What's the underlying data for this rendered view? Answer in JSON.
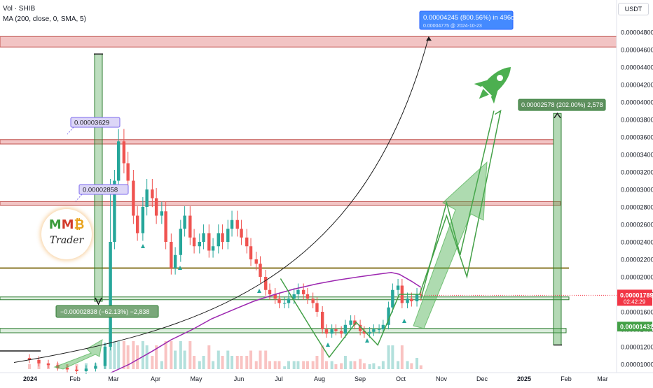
{
  "legend": {
    "title": "Vol · SHIB",
    "indicator": "MA (200, close, 0, SMA, 5)"
  },
  "currency_button": "USDT",
  "logo": {
    "m1": "M",
    "m2": "M",
    "b": "₿",
    "sub": "Trader"
  },
  "colors": {
    "up": "#26a69a",
    "down": "#ef5350",
    "ma": "#9c27b0",
    "zone_red": "#f2c4c4",
    "zone_green": "#2e7d32",
    "arrow_green": "#4caf50",
    "price_badge": "#f23645",
    "support_badge": "#43a047"
  },
  "chart_data": {
    "type": "candlestick",
    "title": "",
    "x_ticks": [
      "2024",
      "Feb",
      "Mar",
      "Apr",
      "May",
      "Jun",
      "Jul",
      "Aug",
      "Sep",
      "Oct",
      "Nov",
      "Dec",
      "2025",
      "Feb",
      "Mar"
    ],
    "y_ticks": [
      "0.00004800",
      "0.00004600",
      "0.00004400",
      "0.00004200",
      "0.00004000",
      "0.00003800",
      "0.00003600",
      "0.00003400",
      "0.00003200",
      "0.00003000",
      "0.00002800",
      "0.00002600",
      "0.00002400",
      "0.00002200",
      "0.00002000",
      "0.00001800",
      "0.00001600",
      "0.00001400",
      "0.00001200",
      "0.00001000"
    ],
    "ylim": [
      9.65e-06,
      4.93e-05
    ],
    "current_price": {
      "label": "0.00001789",
      "countdown": "02:42:29",
      "value": 1.789e-05
    },
    "support_price": {
      "label": "0.00001431",
      "value": 1.431e-05
    },
    "price_labels": [
      {
        "text": "0.00003629",
        "value": 3.629e-05
      },
      {
        "text": "0.00002858",
        "value": 2.858e-05
      }
    ],
    "measures": [
      {
        "text": "0.00004245 (800.56%) in 496d",
        "subtext": "0.00004775 @ 2024-10-23"
      },
      {
        "text": "0.00002578 (202.00%) 2,578"
      },
      {
        "text": "−0.00002838 (−62.13%) −2,838"
      }
    ],
    "zones": [
      {
        "from": 4.63e-05,
        "to": 4.75e-05,
        "color": "red"
      },
      {
        "from": 3.52e-05,
        "to": 3.57e-05,
        "color": "red"
      },
      {
        "from": 2.82e-05,
        "to": 2.86e-05,
        "color": "red"
      },
      {
        "from": 2.1e-05,
        "to": 2.1e-05,
        "color": "olive"
      },
      {
        "from": 1.74e-05,
        "to": 1.77e-05,
        "color": "green"
      },
      {
        "from": 1.36e-05,
        "to": 1.41e-05,
        "color": "green"
      }
    ],
    "series": [
      {
        "name": "",
        "points": [
          [
            "2024-01-01",
            1.05e-05
          ],
          [
            "2024-01-08",
            1.01e-05
          ],
          [
            "2024-01-15",
            9.9e-06
          ],
          [
            "2024-01-22",
            9.6e-06
          ],
          [
            "2024-01-29",
            9.4e-06
          ],
          [
            "2024-02-05",
            9.2e-06
          ],
          [
            "2024-02-12",
            9.5e-06
          ],
          [
            "2024-02-19",
            9.8e-06
          ],
          [
            "2024-02-26",
            1.2e-05
          ],
          [
            "2024-03-01",
            2.4e-05
          ],
          [
            "2024-03-04",
            3.1e-05
          ],
          [
            "2024-03-07",
            3.55e-05
          ],
          [
            "2024-03-11",
            3.3e-05
          ],
          [
            "2024-03-14",
            3.1e-05
          ],
          [
            "2024-03-18",
            2.7e-05
          ],
          [
            "2024-03-21",
            2.5e-05
          ],
          [
            "2024-03-25",
            2.8e-05
          ],
          [
            "2024-03-28",
            3e-05
          ],
          [
            "2024-04-01",
            2.9e-05
          ],
          [
            "2024-04-04",
            2.7e-05
          ],
          [
            "2024-04-08",
            2.75e-05
          ],
          [
            "2024-04-11",
            2.4e-05
          ],
          [
            "2024-04-15",
            2.1e-05
          ],
          [
            "2024-04-18",
            2.25e-05
          ],
          [
            "2024-04-22",
            2.55e-05
          ],
          [
            "2024-04-25",
            2.7e-05
          ],
          [
            "2024-04-29",
            2.45e-05
          ],
          [
            "2024-05-02",
            2.35e-05
          ],
          [
            "2024-05-06",
            2.4e-05
          ],
          [
            "2024-05-09",
            2.5e-05
          ],
          [
            "2024-05-13",
            2.3e-05
          ],
          [
            "2024-05-16",
            2.35e-05
          ],
          [
            "2024-05-20",
            2.5e-05
          ],
          [
            "2024-05-23",
            2.4e-05
          ],
          [
            "2024-05-27",
            2.55e-05
          ],
          [
            "2024-05-30",
            2.65e-05
          ],
          [
            "2024-06-03",
            2.55e-05
          ],
          [
            "2024-06-06",
            2.45e-05
          ],
          [
            "2024-06-10",
            2.35e-05
          ],
          [
            "2024-06-13",
            2.2e-05
          ],
          [
            "2024-06-17",
            2.15e-05
          ],
          [
            "2024-06-20",
            2e-05
          ],
          [
            "2024-06-24",
            1.85e-05
          ],
          [
            "2024-06-27",
            1.8e-05
          ],
          [
            "2024-07-01",
            1.75e-05
          ],
          [
            "2024-07-04",
            1.7e-05
          ],
          [
            "2024-07-08",
            1.7e-05
          ],
          [
            "2024-07-11",
            1.75e-05
          ],
          [
            "2024-07-15",
            1.8e-05
          ],
          [
            "2024-07-18",
            1.85e-05
          ],
          [
            "2024-07-22",
            1.8e-05
          ],
          [
            "2024-07-25",
            1.75e-05
          ],
          [
            "2024-07-29",
            1.7e-05
          ],
          [
            "2024-08-01",
            1.6e-05
          ],
          [
            "2024-08-05",
            1.4e-05
          ],
          [
            "2024-08-08",
            1.35e-05
          ],
          [
            "2024-08-12",
            1.4e-05
          ],
          [
            "2024-08-15",
            1.38e-05
          ],
          [
            "2024-08-19",
            1.35e-05
          ],
          [
            "2024-08-22",
            1.45e-05
          ],
          [
            "2024-08-26",
            1.5e-05
          ],
          [
            "2024-08-29",
            1.45e-05
          ],
          [
            "2024-09-02",
            1.38e-05
          ],
          [
            "2024-09-05",
            1.35e-05
          ],
          [
            "2024-09-09",
            1.37e-05
          ],
          [
            "2024-09-12",
            1.4e-05
          ],
          [
            "2024-09-16",
            1.4e-05
          ],
          [
            "2024-09-19",
            1.45e-05
          ],
          [
            "2024-09-23",
            1.65e-05
          ],
          [
            "2024-09-26",
            1.85e-05
          ],
          [
            "2024-09-30",
            1.9e-05
          ],
          [
            "2024-10-03",
            1.7e-05
          ],
          [
            "2024-10-07",
            1.75e-05
          ],
          [
            "2024-10-10",
            1.72e-05
          ],
          [
            "2024-10-14",
            1.8e-05
          ],
          [
            "2024-10-17",
            1.79e-05
          ]
        ]
      },
      {
        "name": "MA (200, close, 0, SMA, 5)",
        "points": [
          [
            "2024-03-01",
            9e-06
          ],
          [
            "2024-03-15",
            1e-05
          ],
          [
            "2024-04-01",
            1.15e-05
          ],
          [
            "2024-04-15",
            1.28e-05
          ],
          [
            "2024-05-01",
            1.4e-05
          ],
          [
            "2024-05-15",
            1.52e-05
          ],
          [
            "2024-06-01",
            1.63e-05
          ],
          [
            "2024-06-15",
            1.72e-05
          ],
          [
            "2024-07-01",
            1.8e-05
          ],
          [
            "2024-07-15",
            1.86e-05
          ],
          [
            "2024-08-01",
            1.92e-05
          ],
          [
            "2024-08-15",
            1.96e-05
          ],
          [
            "2024-09-01",
            2e-05
          ],
          [
            "2024-09-15",
            2.03e-05
          ],
          [
            "2024-09-25",
            2.05e-05
          ],
          [
            "2024-10-01",
            2.03e-05
          ],
          [
            "2024-10-10",
            1.95e-05
          ],
          [
            "2024-10-17",
            1.88e-05
          ]
        ]
      }
    ],
    "projections": [
      {
        "name": "zigzag-1",
        "points": [
          [
            "2024-10-17",
            1.75e-05
          ],
          [
            "2024-11-05",
            2.85e-05
          ],
          [
            "2024-11-15",
            2.25e-05
          ],
          [
            "2024-12-10",
            3.9e-05
          ]
        ]
      },
      {
        "name": "zigzag-2",
        "points": [
          [
            "2024-07-05",
            1.98e-05
          ],
          [
            "2024-07-28",
            1.4e-05
          ],
          [
            "2024-08-10",
            1.08e-05
          ],
          [
            "2024-08-30",
            1.48e-05
          ],
          [
            "2024-09-15",
            1.22e-05
          ],
          [
            "2024-10-01",
            1.8e-05
          ],
          [
            "2024-10-16",
            1.8e-05
          ],
          [
            "2024-11-05",
            2.7e-05
          ],
          [
            "2024-11-20",
            2e-05
          ],
          [
            "2024-12-15",
            3.9e-05
          ]
        ]
      }
    ],
    "grid": false,
    "legend_position": "top-left"
  }
}
